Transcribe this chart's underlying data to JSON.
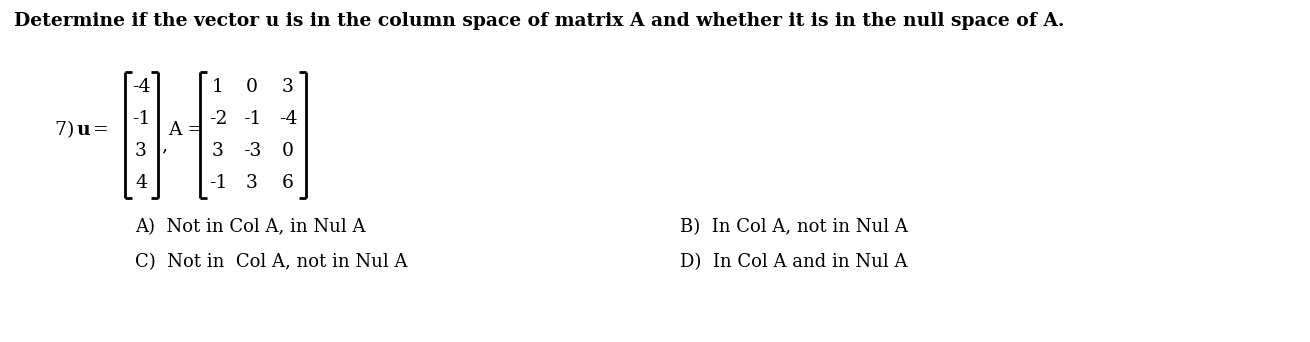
{
  "title": "Determine if the vector u is in the column space of matrix A and whether it is in the null space of A.",
  "title_fontsize": 13.5,
  "background_color": "#ffffff",
  "u_vector": [
    "-4",
    "-1",
    "3",
    "4"
  ],
  "A_matrix": [
    [
      "1",
      "0",
      "3"
    ],
    [
      "-2",
      "-1",
      "-4"
    ],
    [
      "3",
      "-3",
      "0"
    ],
    [
      "-1",
      "3",
      "6"
    ]
  ],
  "answer_A": "A)  Not in Col A, in Nul A",
  "answer_B": "B)  In Col A, not in Nul A",
  "answer_C": "C)  Not in  Col A, not in Nul A",
  "answer_D": "D)  In Col A and in Nul A",
  "font_family": "serif",
  "answer_fontsize": 13.0,
  "matrix_fontsize": 13.5,
  "label_fontsize": 13.5
}
